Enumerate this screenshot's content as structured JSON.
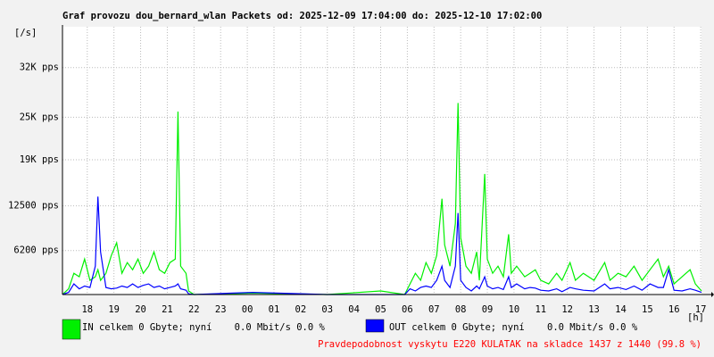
{
  "chart_data": {
    "type": "line",
    "title": "Graf provozu dou_bernard_wlan Packets od: 2025-12-09 17:04:00 do: 2025-12-10 17:02:00",
    "y_label": "[/s]",
    "x_label": "[h]",
    "note": "Pravdepodobnost vyskytu E220 KULATAK na skladce 1437 z 1440 (99.8 %)",
    "grid": true,
    "xlim": [
      17.07,
      41.03
    ],
    "ylim": [
      0,
      37500
    ],
    "yticks": [
      {
        "value": 6200,
        "label": "6200 pps"
      },
      {
        "value": 12500,
        "label": "12500 pps"
      },
      {
        "value": 19000,
        "label": "19K pps"
      },
      {
        "value": 25000,
        "label": "25K pps"
      },
      {
        "value": 32000,
        "label": "32K pps"
      }
    ],
    "xticks": [
      18,
      19,
      20,
      21,
      22,
      23,
      {
        "value": 24,
        "label": "00"
      },
      {
        "value": 25,
        "label": "01"
      },
      {
        "value": 26,
        "label": "02"
      },
      {
        "value": 27,
        "label": "03"
      },
      {
        "value": 28,
        "label": "04"
      },
      {
        "value": 29,
        "label": "05"
      },
      {
        "value": 30,
        "label": "06"
      },
      {
        "value": 31,
        "label": "07"
      },
      {
        "value": 32,
        "label": "08"
      },
      {
        "value": 33,
        "label": "09"
      },
      {
        "value": 34,
        "label": "10"
      },
      {
        "value": 35,
        "label": "11"
      },
      {
        "value": 36,
        "label": "12"
      },
      {
        "value": 37,
        "label": "13"
      },
      {
        "value": 38,
        "label": "14"
      },
      {
        "value": 39,
        "label": "15"
      },
      {
        "value": 40,
        "label": "16"
      },
      {
        "value": 41,
        "label": "17"
      }
    ],
    "x": [
      17.07,
      17.3,
      17.5,
      17.7,
      17.9,
      18.1,
      18.3,
      18.4,
      18.5,
      18.7,
      18.9,
      19.1,
      19.3,
      19.5,
      19.7,
      19.9,
      20.1,
      20.3,
      20.5,
      20.7,
      20.9,
      21.1,
      21.3,
      21.4,
      21.5,
      21.7,
      21.8,
      22.0,
      24.2,
      27.0,
      29.0,
      29.9,
      30.1,
      30.3,
      30.5,
      30.7,
      30.9,
      31.1,
      31.3,
      31.4,
      31.6,
      31.8,
      31.9,
      32.0,
      32.2,
      32.4,
      32.6,
      32.7,
      32.9,
      33.0,
      33.2,
      33.4,
      33.6,
      33.8,
      33.9,
      34.1,
      34.4,
      34.6,
      34.8,
      35.0,
      35.3,
      35.6,
      35.8,
      36.1,
      36.3,
      36.6,
      37.0,
      37.4,
      37.6,
      37.9,
      38.2,
      38.5,
      38.8,
      39.1,
      39.4,
      39.6,
      39.8,
      40.0,
      40.3,
      40.6,
      40.8,
      41.03
    ],
    "series": [
      {
        "name": "IN celkem 0 Gbyte; nyní    0.0 Mbit/s 0.0 %",
        "color": "#00f000",
        "values": [
          0,
          800,
          3000,
          2500,
          5000,
          2000,
          2500,
          3500,
          2000,
          3000,
          5500,
          7300,
          3000,
          4500,
          3500,
          5000,
          3000,
          4000,
          6000,
          3500,
          3000,
          4500,
          5000,
          25800,
          4000,
          3000,
          500,
          0,
          200,
          0,
          500,
          0,
          1500,
          3000,
          2000,
          4500,
          3000,
          5500,
          13500,
          7000,
          4000,
          10000,
          27000,
          8000,
          4000,
          3000,
          6000,
          2000,
          17000,
          5000,
          3000,
          4000,
          2500,
          8500,
          3000,
          4000,
          2500,
          3000,
          3500,
          2000,
          1500,
          3000,
          2000,
          4500,
          2000,
          3000,
          2000,
          4500,
          2000,
          3000,
          2500,
          4000,
          2000,
          3500,
          5000,
          2500,
          4000,
          1500,
          2500,
          3500,
          1500,
          500
        ]
      },
      {
        "name": "OUT celkem 0 Gbyte; nyní    0.0 Mbit/s 0.0 %",
        "color": "#0000ff",
        "values": [
          0,
          300,
          1500,
          800,
          1200,
          1000,
          4000,
          13800,
          6000,
          1000,
          800,
          900,
          1200,
          1000,
          1500,
          1000,
          1300,
          1500,
          1000,
          1200,
          800,
          1000,
          1200,
          1500,
          800,
          600,
          100,
          0,
          300,
          0,
          0,
          0,
          800,
          500,
          1000,
          1200,
          1000,
          2000,
          4000,
          2000,
          1000,
          4000,
          11500,
          2000,
          1000,
          500,
          1200,
          800,
          2500,
          1200,
          800,
          1000,
          700,
          2500,
          1000,
          1500,
          800,
          1000,
          900,
          600,
          500,
          800,
          400,
          1000,
          800,
          600,
          500,
          1500,
          800,
          1000,
          700,
          1200,
          600,
          1500,
          1000,
          1000,
          3500,
          600,
          500,
          800,
          600,
          300
        ]
      }
    ]
  }
}
